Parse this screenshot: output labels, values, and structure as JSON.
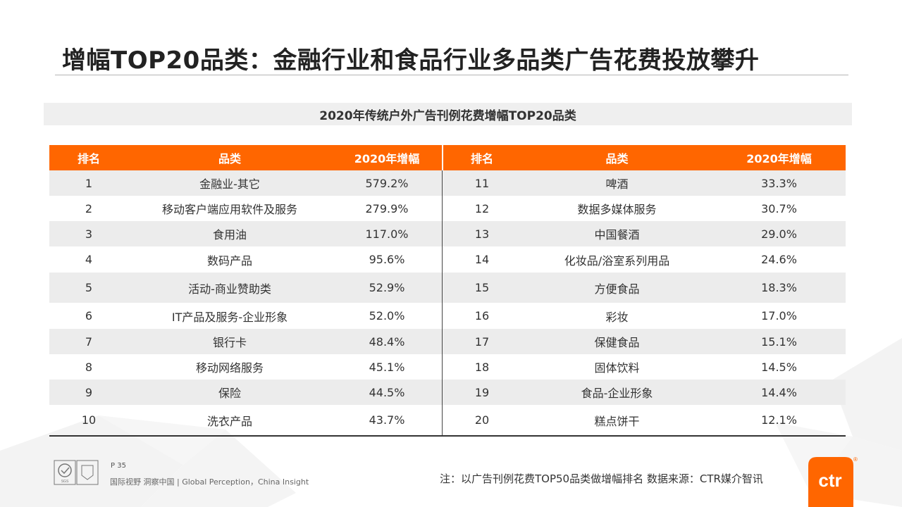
{
  "title": "增幅TOP20品类：金融行业和食品行业多品类广告花费投放攀升",
  "subtitle": "2020年传统户外广告刊例花费增幅TOP20品类",
  "headers": [
    "排名",
    "品类",
    "2020年增幅",
    "排名",
    "品类",
    "2020年增幅"
  ],
  "rows": [
    {
      "left": {
        "rank": "1",
        "category": "金融业-其它",
        "growth": "579.2%"
      },
      "right": {
        "rank": "11",
        "category": "啤酒",
        "growth": "33.3%"
      }
    },
    {
      "left": {
        "rank": "2",
        "category": "移动客户端应用软件及服务",
        "growth": "279.9%"
      },
      "right": {
        "rank": "12",
        "category": "数据多媒体服务",
        "growth": "30.7%"
      }
    },
    {
      "left": {
        "rank": "3",
        "category": "食用油",
        "growth": "117.0%"
      },
      "right": {
        "rank": "13",
        "category": "中国餐酒",
        "growth": "29.0%"
      }
    },
    {
      "left": {
        "rank": "4",
        "category": "数码产品",
        "growth": "95.6%"
      },
      "right": {
        "rank": "14",
        "category": "化妆品/浴室系列用品",
        "growth": "24.6%"
      }
    },
    {
      "left": {
        "rank": "5",
        "category": "活动-商业赞助类",
        "growth": "52.9%"
      },
      "right": {
        "rank": "15",
        "category": "方便食品",
        "growth": "18.3%"
      }
    },
    {
      "left": {
        "rank": "6",
        "category": "IT产品及服务-企业形象",
        "growth": "52.0%"
      },
      "right": {
        "rank": "16",
        "category": "彩妆",
        "growth": "17.0%"
      }
    },
    {
      "left": {
        "rank": "7",
        "category": "银行卡",
        "growth": "48.4%"
      },
      "right": {
        "rank": "17",
        "category": "保健食品",
        "growth": "15.1%"
      }
    },
    {
      "left": {
        "rank": "8",
        "category": "移动网络服务",
        "growth": "45.1%"
      },
      "right": {
        "rank": "18",
        "category": "固体饮料",
        "growth": "14.5%"
      }
    },
    {
      "left": {
        "rank": "9",
        "category": "保险",
        "growth": "44.5%"
      },
      "right": {
        "rank": "19",
        "category": "食品-企业形象",
        "growth": "14.4%"
      }
    },
    {
      "left": {
        "rank": "10",
        "category": "洗衣产品",
        "growth": "43.7%"
      },
      "right": {
        "rank": "20",
        "category": "糕点饼干",
        "growth": "12.1%"
      }
    }
  ],
  "footer": {
    "page": "P 35",
    "tagline": "国际视野  洞察中国 |  Global Perception，China Insight",
    "note": "注：以广告刊例花费TOP50品类做增幅排名   数据来源：CTR媒介智讯",
    "logo_text": "ctr",
    "registered_mark": "®",
    "cert_mark": "SGS"
  },
  "colors": {
    "accent": "#ff6600",
    "row_shade": "#ececec",
    "subtitle_bg": "#efefef"
  }
}
